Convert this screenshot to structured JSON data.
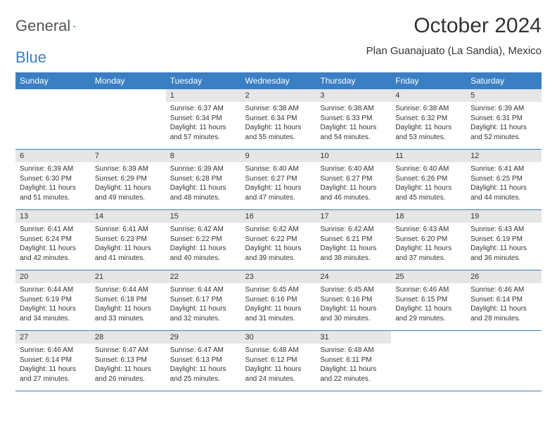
{
  "brand": {
    "part1": "General",
    "part2": "Blue"
  },
  "title": "October 2024",
  "location": "Plan Guanajuato (La Sandia), Mexico",
  "colors": {
    "header_bg": "#3a7fc4",
    "header_text": "#ffffff",
    "daynum_bg": "#e6e6e6",
    "border": "#3a7fc4",
    "text": "#333333",
    "background": "#ffffff"
  },
  "day_headers": [
    "Sunday",
    "Monday",
    "Tuesday",
    "Wednesday",
    "Thursday",
    "Friday",
    "Saturday"
  ],
  "weeks": [
    {
      "days": [
        {
          "num": "",
          "sunrise": "",
          "sunset": "",
          "daylight": ""
        },
        {
          "num": "",
          "sunrise": "",
          "sunset": "",
          "daylight": ""
        },
        {
          "num": "1",
          "sunrise": "Sunrise: 6:37 AM",
          "sunset": "Sunset: 6:34 PM",
          "daylight": "Daylight: 11 hours and 57 minutes."
        },
        {
          "num": "2",
          "sunrise": "Sunrise: 6:38 AM",
          "sunset": "Sunset: 6:34 PM",
          "daylight": "Daylight: 11 hours and 55 minutes."
        },
        {
          "num": "3",
          "sunrise": "Sunrise: 6:38 AM",
          "sunset": "Sunset: 6:33 PM",
          "daylight": "Daylight: 11 hours and 54 minutes."
        },
        {
          "num": "4",
          "sunrise": "Sunrise: 6:38 AM",
          "sunset": "Sunset: 6:32 PM",
          "daylight": "Daylight: 11 hours and 53 minutes."
        },
        {
          "num": "5",
          "sunrise": "Sunrise: 6:39 AM",
          "sunset": "Sunset: 6:31 PM",
          "daylight": "Daylight: 11 hours and 52 minutes."
        }
      ]
    },
    {
      "days": [
        {
          "num": "6",
          "sunrise": "Sunrise: 6:39 AM",
          "sunset": "Sunset: 6:30 PM",
          "daylight": "Daylight: 11 hours and 51 minutes."
        },
        {
          "num": "7",
          "sunrise": "Sunrise: 6:39 AM",
          "sunset": "Sunset: 6:29 PM",
          "daylight": "Daylight: 11 hours and 49 minutes."
        },
        {
          "num": "8",
          "sunrise": "Sunrise: 6:39 AM",
          "sunset": "Sunset: 6:28 PM",
          "daylight": "Daylight: 11 hours and 48 minutes."
        },
        {
          "num": "9",
          "sunrise": "Sunrise: 6:40 AM",
          "sunset": "Sunset: 6:27 PM",
          "daylight": "Daylight: 11 hours and 47 minutes."
        },
        {
          "num": "10",
          "sunrise": "Sunrise: 6:40 AM",
          "sunset": "Sunset: 6:27 PM",
          "daylight": "Daylight: 11 hours and 46 minutes."
        },
        {
          "num": "11",
          "sunrise": "Sunrise: 6:40 AM",
          "sunset": "Sunset: 6:26 PM",
          "daylight": "Daylight: 11 hours and 45 minutes."
        },
        {
          "num": "12",
          "sunrise": "Sunrise: 6:41 AM",
          "sunset": "Sunset: 6:25 PM",
          "daylight": "Daylight: 11 hours and 44 minutes."
        }
      ]
    },
    {
      "days": [
        {
          "num": "13",
          "sunrise": "Sunrise: 6:41 AM",
          "sunset": "Sunset: 6:24 PM",
          "daylight": "Daylight: 11 hours and 42 minutes."
        },
        {
          "num": "14",
          "sunrise": "Sunrise: 6:41 AM",
          "sunset": "Sunset: 6:23 PM",
          "daylight": "Daylight: 11 hours and 41 minutes."
        },
        {
          "num": "15",
          "sunrise": "Sunrise: 6:42 AM",
          "sunset": "Sunset: 6:22 PM",
          "daylight": "Daylight: 11 hours and 40 minutes."
        },
        {
          "num": "16",
          "sunrise": "Sunrise: 6:42 AM",
          "sunset": "Sunset: 6:22 PM",
          "daylight": "Daylight: 11 hours and 39 minutes."
        },
        {
          "num": "17",
          "sunrise": "Sunrise: 6:42 AM",
          "sunset": "Sunset: 6:21 PM",
          "daylight": "Daylight: 11 hours and 38 minutes."
        },
        {
          "num": "18",
          "sunrise": "Sunrise: 6:43 AM",
          "sunset": "Sunset: 6:20 PM",
          "daylight": "Daylight: 11 hours and 37 minutes."
        },
        {
          "num": "19",
          "sunrise": "Sunrise: 6:43 AM",
          "sunset": "Sunset: 6:19 PM",
          "daylight": "Daylight: 11 hours and 36 minutes."
        }
      ]
    },
    {
      "days": [
        {
          "num": "20",
          "sunrise": "Sunrise: 6:44 AM",
          "sunset": "Sunset: 6:19 PM",
          "daylight": "Daylight: 11 hours and 34 minutes."
        },
        {
          "num": "21",
          "sunrise": "Sunrise: 6:44 AM",
          "sunset": "Sunset: 6:18 PM",
          "daylight": "Daylight: 11 hours and 33 minutes."
        },
        {
          "num": "22",
          "sunrise": "Sunrise: 6:44 AM",
          "sunset": "Sunset: 6:17 PM",
          "daylight": "Daylight: 11 hours and 32 minutes."
        },
        {
          "num": "23",
          "sunrise": "Sunrise: 6:45 AM",
          "sunset": "Sunset: 6:16 PM",
          "daylight": "Daylight: 11 hours and 31 minutes."
        },
        {
          "num": "24",
          "sunrise": "Sunrise: 6:45 AM",
          "sunset": "Sunset: 6:16 PM",
          "daylight": "Daylight: 11 hours and 30 minutes."
        },
        {
          "num": "25",
          "sunrise": "Sunrise: 6:46 AM",
          "sunset": "Sunset: 6:15 PM",
          "daylight": "Daylight: 11 hours and 29 minutes."
        },
        {
          "num": "26",
          "sunrise": "Sunrise: 6:46 AM",
          "sunset": "Sunset: 6:14 PM",
          "daylight": "Daylight: 11 hours and 28 minutes."
        }
      ]
    },
    {
      "days": [
        {
          "num": "27",
          "sunrise": "Sunrise: 6:46 AM",
          "sunset": "Sunset: 6:14 PM",
          "daylight": "Daylight: 11 hours and 27 minutes."
        },
        {
          "num": "28",
          "sunrise": "Sunrise: 6:47 AM",
          "sunset": "Sunset: 6:13 PM",
          "daylight": "Daylight: 11 hours and 26 minutes."
        },
        {
          "num": "29",
          "sunrise": "Sunrise: 6:47 AM",
          "sunset": "Sunset: 6:13 PM",
          "daylight": "Daylight: 11 hours and 25 minutes."
        },
        {
          "num": "30",
          "sunrise": "Sunrise: 6:48 AM",
          "sunset": "Sunset: 6:12 PM",
          "daylight": "Daylight: 11 hours and 24 minutes."
        },
        {
          "num": "31",
          "sunrise": "Sunrise: 6:48 AM",
          "sunset": "Sunset: 6:11 PM",
          "daylight": "Daylight: 11 hours and 22 minutes."
        },
        {
          "num": "",
          "sunrise": "",
          "sunset": "",
          "daylight": ""
        },
        {
          "num": "",
          "sunrise": "",
          "sunset": "",
          "daylight": ""
        }
      ]
    }
  ]
}
